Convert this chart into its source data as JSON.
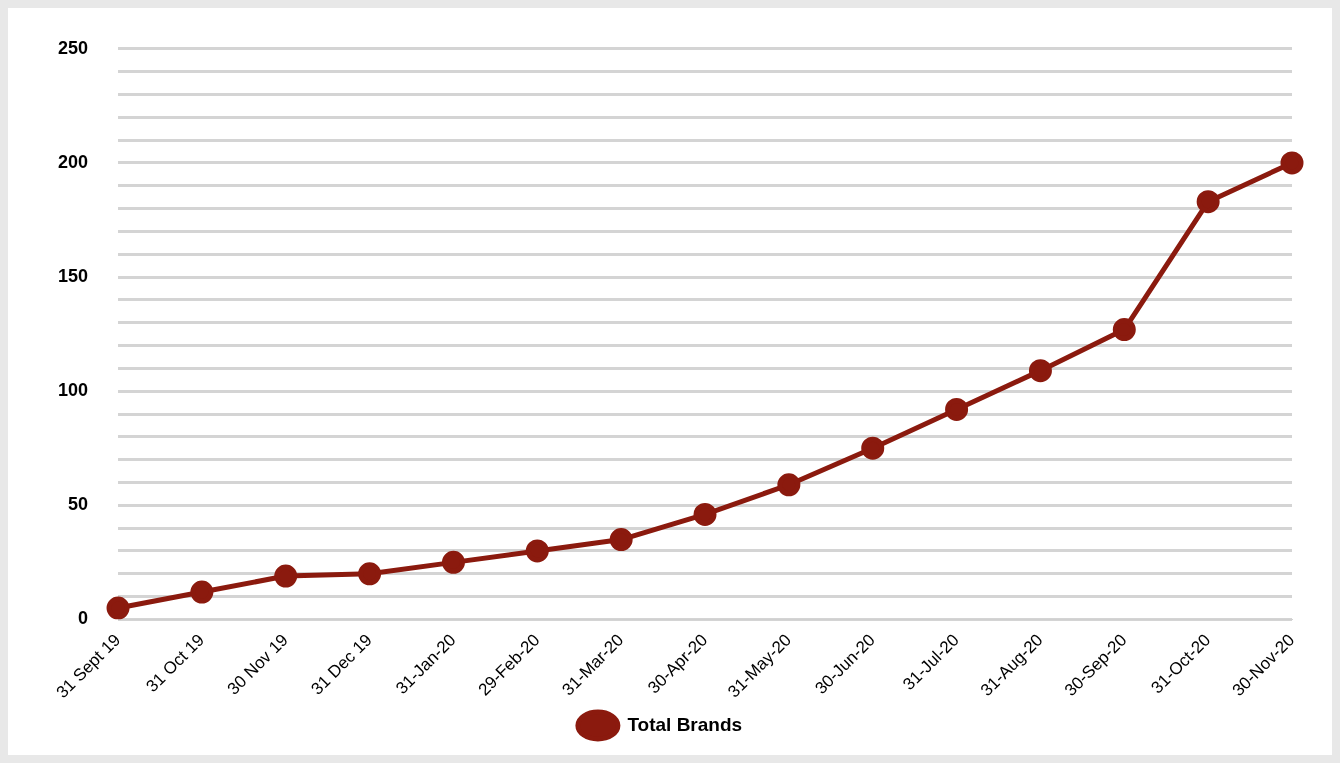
{
  "chart_data": {
    "type": "line",
    "categories": [
      "31 Sept 19",
      "31 Oct 19",
      "30 Nov 19",
      "31 Dec 19",
      "31-Jan-20",
      "29-Feb-20",
      "31-Mar-20",
      "30-Apr-20",
      "31-May-20",
      "30-Jun-20",
      "31-Jul-20",
      "31-Aug-20",
      "30-Sep-20",
      "31-Oct-20",
      "30-Nov-20"
    ],
    "series": [
      {
        "name": "Total Brands",
        "color": "#8b1a0e",
        "values": [
          5,
          12,
          19,
          20,
          25,
          30,
          35,
          46,
          59,
          75,
          92,
          109,
          127,
          183,
          200
        ]
      }
    ],
    "ylim": [
      0,
      250
    ],
    "yticks": [
      0,
      {
        "value": 10,
        "label": null
      },
      {
        "value": 20,
        "label": null
      },
      {
        "value": 30,
        "label": null
      },
      {
        "value": 40,
        "label": null
      },
      50,
      {
        "value": 60,
        "label": null
      },
      {
        "value": 70,
        "label": null
      },
      {
        "value": 80,
        "label": null
      },
      {
        "value": 90,
        "label": null
      },
      100,
      {
        "value": 110,
        "label": null
      },
      {
        "value": 120,
        "label": null
      },
      {
        "value": 130,
        "label": null
      },
      {
        "value": 140,
        "label": null
      },
      150,
      {
        "value": 160,
        "label": null
      },
      {
        "value": 170,
        "label": null
      },
      {
        "value": 180,
        "label": null
      },
      {
        "value": 190,
        "label": null
      },
      200,
      {
        "value": 210,
        "label": null
      },
      {
        "value": 220,
        "label": null
      },
      {
        "value": 230,
        "label": null
      },
      {
        "value": 240,
        "label": null
      },
      250
    ],
    "grid": "y",
    "legend": "bottom",
    "marker": "circle",
    "line_style": "solid"
  }
}
